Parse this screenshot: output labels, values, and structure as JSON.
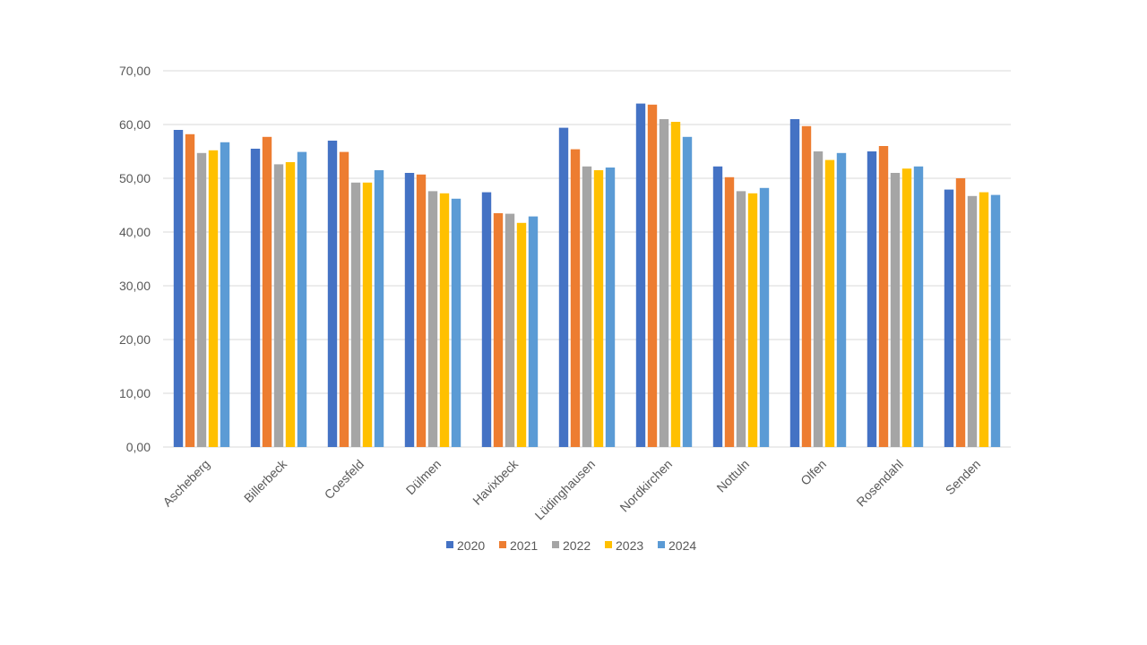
{
  "chart_data": {
    "type": "bar",
    "title": "",
    "xlabel": "",
    "ylabel": "",
    "ylim": [
      0,
      70
    ],
    "y_ticks": [
      "0,00",
      "10,00",
      "20,00",
      "30,00",
      "40,00",
      "50,00",
      "60,00",
      "70,00"
    ],
    "y_tick_values": [
      0,
      10,
      20,
      30,
      40,
      50,
      60,
      70
    ],
    "grid": true,
    "legend_position": "bottom",
    "categories": [
      "Ascheberg",
      "Billerbeck",
      "Coesfeld",
      "Dülmen",
      "Havixbeck",
      "Lüdinghausen",
      "Nordkirchen",
      "Nottuln",
      "Olfen",
      "Rosendahl",
      "Senden"
    ],
    "series": [
      {
        "name": "2020",
        "color": "#4472C4",
        "values": [
          59.0,
          55.5,
          57.0,
          51.0,
          47.4,
          59.4,
          63.9,
          52.2,
          61.0,
          55.0,
          47.9
        ]
      },
      {
        "name": "2021",
        "color": "#ED7D31",
        "values": [
          58.2,
          57.7,
          54.9,
          50.7,
          43.5,
          55.4,
          63.7,
          50.2,
          59.7,
          56.0,
          50.0
        ]
      },
      {
        "name": "2022",
        "color": "#A5A5A5",
        "values": [
          54.7,
          52.6,
          49.2,
          47.6,
          43.4,
          52.2,
          61.0,
          47.6,
          55.0,
          51.0,
          46.7
        ]
      },
      {
        "name": "2023",
        "color": "#FFC000",
        "values": [
          55.2,
          53.0,
          49.2,
          47.2,
          41.7,
          51.5,
          60.5,
          47.2,
          53.4,
          51.8,
          47.4
        ]
      },
      {
        "name": "2024",
        "color": "#5B9BD5",
        "values": [
          56.7,
          54.9,
          51.5,
          46.2,
          42.9,
          52.0,
          57.7,
          48.2,
          54.7,
          52.2,
          46.9
        ]
      }
    ]
  }
}
